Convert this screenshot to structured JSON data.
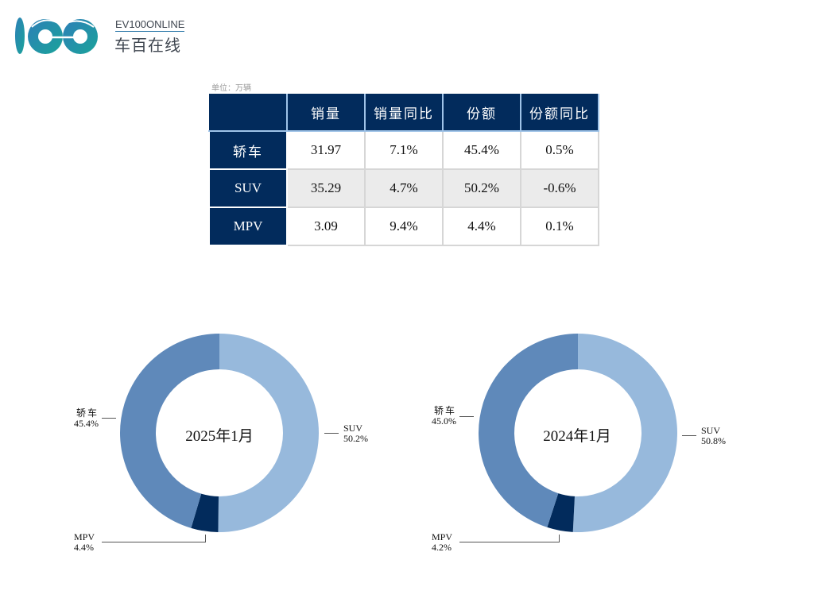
{
  "logo": {
    "en": "EV100ONLINE",
    "cn": "车百在线"
  },
  "table": {
    "unit": "单位：万辆",
    "headers": [
      "",
      "销量",
      "销量同比",
      "份额",
      "份额同比"
    ],
    "rows": [
      {
        "name": "轿车",
        "sales": "31.97",
        "sales_yoy": "7.1%",
        "share": "45.4%",
        "share_yoy": "0.5%"
      },
      {
        "name": "SUV",
        "sales": "35.29",
        "sales_yoy": "4.7%",
        "share": "50.2%",
        "share_yoy": "-0.6%"
      },
      {
        "name": "MPV",
        "sales": "3.09",
        "sales_yoy": "9.4%",
        "share": "4.4%",
        "share_yoy": "0.1%"
      }
    ]
  },
  "colors": {
    "suv": "#97b9dc",
    "sedan": "#5f89ba",
    "mpv": "#022b5c",
    "header": "#022b5c"
  },
  "chart_data": [
    {
      "type": "pie",
      "donut": true,
      "title": "2025年1月",
      "categories": [
        "SUV",
        "MPV",
        "轿车"
      ],
      "values": [
        50.2,
        4.4,
        45.4
      ],
      "labels": {
        "sedan_name": "轿车",
        "sedan_val": "45.4%",
        "suv_name": "SUV",
        "suv_val": "50.2%",
        "mpv_name": "MPV",
        "mpv_val": "4.4%"
      }
    },
    {
      "type": "pie",
      "donut": true,
      "title": "2024年1月",
      "categories": [
        "SUV",
        "MPV",
        "轿车"
      ],
      "values": [
        50.8,
        4.2,
        45.0
      ],
      "labels": {
        "sedan_name": "轿车",
        "sedan_val": "45.0%",
        "suv_name": "SUV",
        "suv_val": "50.8%",
        "mpv_name": "MPV",
        "mpv_val": "4.2%"
      }
    }
  ]
}
